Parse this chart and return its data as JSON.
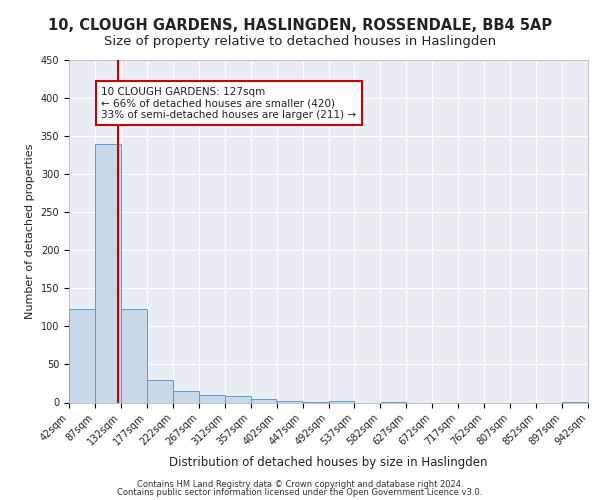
{
  "title": "10, CLOUGH GARDENS, HASLINGDEN, ROSSENDALE, BB4 5AP",
  "subtitle": "Size of property relative to detached houses in Haslingden",
  "xlabel": "Distribution of detached houses by size in Haslingden",
  "ylabel": "Number of detached properties",
  "bar_color": "#c8d8e8",
  "bar_edge_color": "#5b9bd5",
  "background_color": "#e8eef4",
  "grid_color": "#ffffff",
  "bin_edges": [
    42,
    87,
    132,
    177,
    222,
    267,
    312,
    357,
    402,
    447,
    492,
    537,
    582,
    627,
    672,
    717,
    762,
    807,
    852,
    897,
    942
  ],
  "bin_labels": [
    "42sqm",
    "87sqm",
    "132sqm",
    "177sqm",
    "222sqm",
    "267sqm",
    "312sqm",
    "357sqm",
    "402sqm",
    "447sqm",
    "492sqm",
    "537sqm",
    "582sqm",
    "627sqm",
    "672sqm",
    "717sqm",
    "762sqm",
    "807sqm",
    "852sqm",
    "897sqm",
    "942sqm"
  ],
  "bar_heights": [
    123,
    340,
    123,
    30,
    15,
    10,
    8,
    5,
    2,
    1,
    2,
    0,
    1,
    0,
    0,
    0,
    0,
    0,
    0,
    1
  ],
  "vline_x": 127,
  "vline_color": "#cc0000",
  "annotation_line1": "10 CLOUGH GARDENS: 127sqm",
  "annotation_line2": "← 66% of detached houses are smaller (420)",
  "annotation_line3": "33% of semi-detached houses are larger (211) →",
  "annotation_box_color": "#ffffff",
  "annotation_box_edge_color": "#cc0000",
  "footer_line1": "Contains HM Land Registry data © Crown copyright and database right 2024.",
  "footer_line2": "Contains public sector information licensed under the Open Government Licence v3.0.",
  "ylim": [
    0,
    450
  ],
  "title_fontsize": 10.5,
  "subtitle_fontsize": 9.5,
  "tick_fontsize": 7,
  "ylabel_fontsize": 8,
  "xlabel_fontsize": 8.5,
  "annot_fontsize": 7.5,
  "footer_fontsize": 6
}
